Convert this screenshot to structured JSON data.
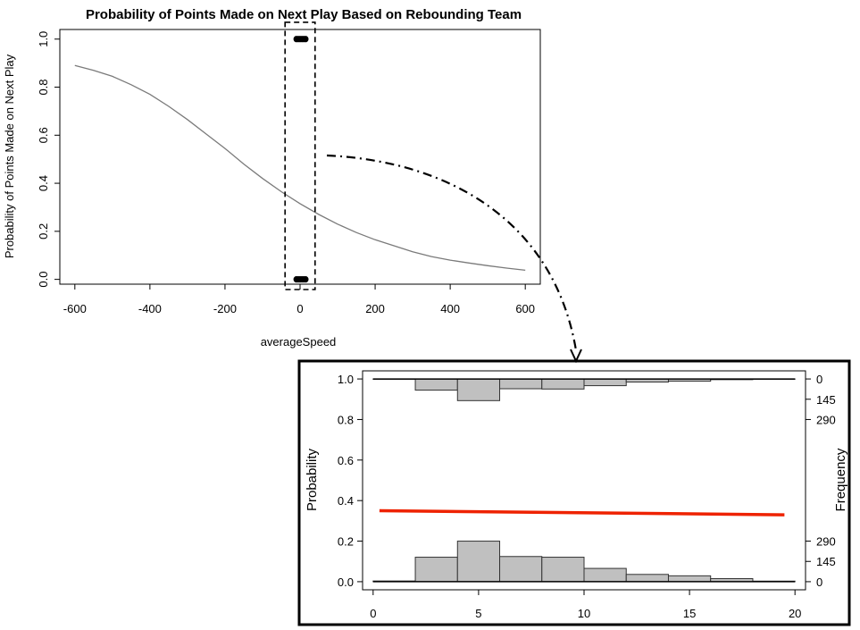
{
  "chart_data": [
    {
      "type": "line",
      "title": "Probability of Points Made on Next Play Based on Rebounding Team",
      "xlabel": "averageSpeed",
      "ylabel": "Probability of Points Made on Next Play",
      "xlim": [
        -640,
        640
      ],
      "ylim": [
        -0.02,
        1.04
      ],
      "xticks": [
        -600,
        -400,
        -200,
        0,
        200,
        400,
        600
      ],
      "yticks": [
        0.0,
        0.2,
        0.4,
        0.6,
        0.8,
        1.0
      ],
      "xtick_labels": [
        "-600",
        "-400",
        "-200",
        "0",
        "200",
        "400",
        "600"
      ],
      "ytick_labels": [
        "0.0",
        "0.2",
        "0.4",
        "0.6",
        "0.8",
        "1.0"
      ],
      "grid": false,
      "series": [
        {
          "color": "#7a7a7a",
          "x": [
            -600,
            -550,
            -500,
            -450,
            -400,
            -350,
            -300,
            -250,
            -200,
            -150,
            -100,
            -50,
            0,
            50,
            100,
            150,
            200,
            250,
            300,
            350,
            400,
            450,
            500,
            550,
            600
          ],
          "y": [
            0.89,
            0.87,
            0.845,
            0.81,
            0.77,
            0.72,
            0.665,
            0.605,
            0.545,
            0.48,
            0.42,
            0.365,
            0.315,
            0.27,
            0.23,
            0.195,
            0.165,
            0.14,
            0.115,
            0.095,
            0.08,
            0.068,
            0.057,
            0.047,
            0.038
          ]
        }
      ],
      "points": {
        "color": "#000000",
        "top": {
          "y": 1.0,
          "x": [
            -10,
            -5,
            0,
            5,
            10,
            15
          ]
        },
        "bottom": {
          "y": 0.0,
          "x": [
            -10,
            -5,
            0,
            5,
            10,
            15
          ]
        }
      },
      "highlight_box": {
        "x": [
          -40,
          40
        ],
        "y": [
          -0.02,
          1.07
        ]
      }
    },
    {
      "type": "bar",
      "xlabel": "",
      "ylabel": "Probability",
      "y2label": "Frequency",
      "xlim": [
        -0.5,
        20.5
      ],
      "ylim": [
        -0.04,
        1.04
      ],
      "xticks": [
        0,
        5,
        10,
        15,
        20
      ],
      "yticks": [
        0.0,
        0.2,
        0.4,
        0.6,
        0.8,
        1.0
      ],
      "xtick_labels": [
        "0",
        "5",
        "10",
        "15",
        "20"
      ],
      "ytick_labels": [
        "0.0",
        "0.2",
        "0.4",
        "0.6",
        "0.8",
        "1.0"
      ],
      "y2_top_ticks": {
        "labels": [
          "0",
          "145",
          "290"
        ],
        "values": [
          0,
          145,
          290
        ]
      },
      "y2_bottom_ticks": {
        "labels": [
          "0",
          "145",
          "290"
        ],
        "values": [
          0,
          145,
          290
        ]
      },
      "hist_bins": [
        [
          0,
          2
        ],
        [
          2,
          4
        ],
        [
          4,
          6
        ],
        [
          6,
          8
        ],
        [
          8,
          10
        ],
        [
          10,
          12
        ],
        [
          12,
          14
        ],
        [
          14,
          16
        ],
        [
          16,
          18
        ],
        [
          18,
          20
        ]
      ],
      "hist_bottom_freq": [
        5,
        175,
        290,
        180,
        175,
        95,
        52,
        42,
        22,
        4
      ],
      "hist_top_freq": [
        2,
        80,
        155,
        70,
        72,
        48,
        22,
        16,
        5,
        2
      ],
      "fit_line": {
        "color": "#ee2200",
        "x": [
          0.3,
          19.5
        ],
        "y": [
          0.35,
          0.33
        ]
      },
      "hist_color": "#c0c0c0"
    }
  ]
}
